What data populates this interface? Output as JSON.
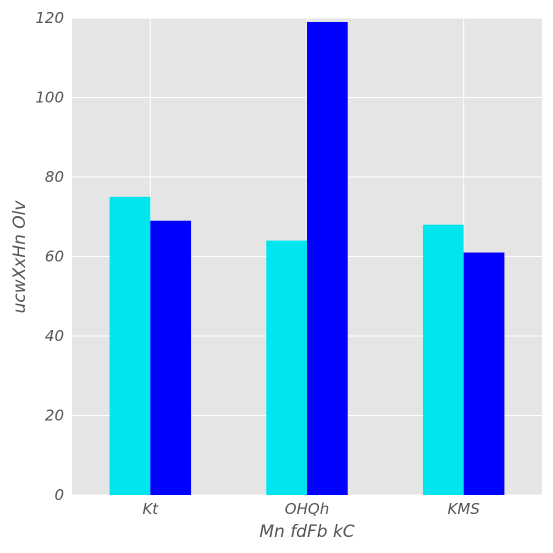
{
  "chart_data": {
    "type": "bar",
    "title": "",
    "xlabel": "Mn fdFb kC",
    "ylabel": "ucwXxHn Olv",
    "categories": [
      "Kt",
      "OHQh",
      "KMS"
    ],
    "series": [
      {
        "values": [
          75,
          64,
          68
        ],
        "color": "#00e5ee"
      },
      {
        "values": [
          69,
          119,
          61
        ],
        "color": "#0000ff"
      }
    ],
    "ylim": [
      0,
      120
    ],
    "yticks": [
      0,
      20,
      40,
      60,
      80,
      100,
      120
    ],
    "grid": true,
    "legend": "none",
    "background": "#e5e5e5"
  }
}
